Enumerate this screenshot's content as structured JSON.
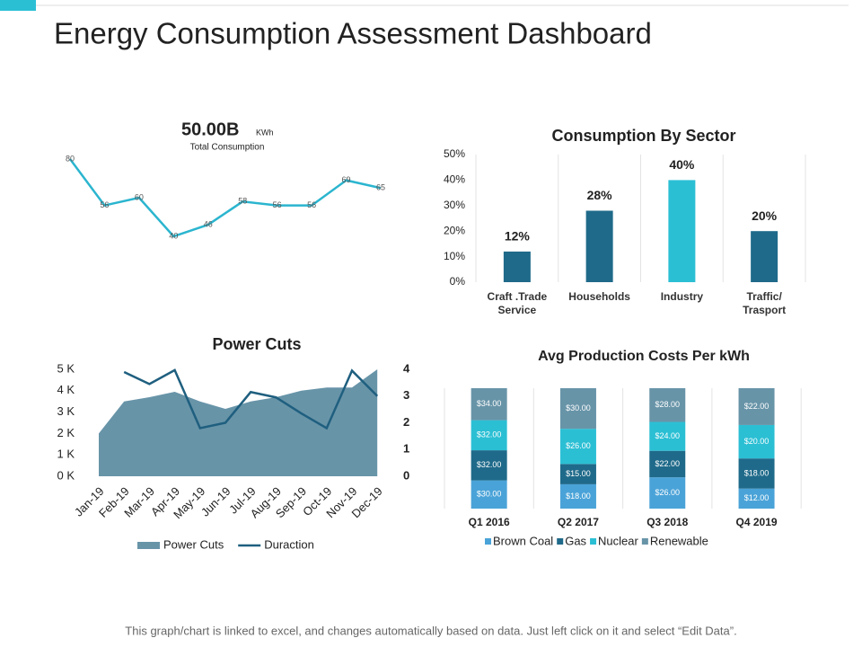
{
  "title": "Energy Consumption Assessment Dashboard",
  "footer": "This graph/chart is linked to excel, and changes automatically based on data. Just left click on it and select “Edit Data”.",
  "chart_data": [
    {
      "type": "line",
      "headline": "50.00B",
      "unit": "KWh",
      "subtitle": "Total Consumption",
      "color": "#2bb5cf",
      "values": [
        80,
        56,
        60,
        40,
        46,
        58,
        56,
        56,
        69,
        65
      ]
    },
    {
      "type": "bar",
      "title": "Consumption By Sector",
      "categories": [
        "Craft .Trade Service",
        "Households",
        "Industry",
        "Traffic/ Trasport"
      ],
      "values": [
        12,
        28,
        40,
        20
      ],
      "value_labels": [
        "12%",
        "28%",
        "40%",
        "20%"
      ],
      "colors": [
        "#1f6a8a",
        "#1f6a8a",
        "#2bbfd4",
        "#1f6a8a"
      ],
      "ylim": [
        0,
        50
      ],
      "yticks": [
        {
          "value": 0,
          "label": "0%"
        },
        {
          "value": 10,
          "label": "10%"
        },
        {
          "value": 20,
          "label": "20%"
        },
        {
          "value": 30,
          "label": "30%"
        },
        {
          "value": 40,
          "label": "40%"
        },
        {
          "value": 50,
          "label": "50%"
        }
      ]
    },
    {
      "type": "area",
      "title": "Power Cuts",
      "categories": [
        "Jan-19",
        "Feb-19",
        "Mar-19",
        "Apr-19",
        "May-19",
        "Jun-19",
        "Jul-19",
        "Aug-19",
        "Sep-19",
        "Oct-19",
        "Nov-19",
        "Dec-19"
      ],
      "series": [
        {
          "name": "Power Cuts",
          "type": "area",
          "color": "#6894a8",
          "values": [
            2000,
            3500,
            3700,
            3950,
            3500,
            3150,
            3500,
            3700,
            4000,
            4150,
            4150,
            5000
          ]
        },
        {
          "name": "Duraction",
          "type": "line",
          "axis": "y2",
          "color": "#1f5f7f",
          "values": [
            null,
            3.9,
            3.45,
            3.97,
            1.8,
            2.0,
            3.15,
            2.95,
            2.35,
            1.8,
            3.95,
            3.0
          ]
        }
      ],
      "ylim": [
        0,
        5000
      ],
      "yticks": [
        {
          "value": 0,
          "label": "0 K"
        },
        {
          "value": 1000,
          "label": "1 K"
        },
        {
          "value": 2000,
          "label": "2 K"
        },
        {
          "value": 3000,
          "label": "3 K"
        },
        {
          "value": 4000,
          "label": "4 K"
        },
        {
          "value": 5000,
          "label": "5 K"
        }
      ],
      "y2lim": [
        0,
        4
      ],
      "y2ticks": [
        0,
        1,
        2,
        3,
        4
      ],
      "legend": "bottom"
    },
    {
      "type": "stacked_bar",
      "title": "Avg Production Costs Per kWh",
      "normalize": true,
      "legend": "bottom",
      "categories": [
        "Q1 2016",
        "Q2 2017",
        "Q3 2018",
        "Q4 2019"
      ],
      "series": [
        {
          "name": "Brown Coal",
          "color": "#4aa3d8",
          "values": [
            30,
            18,
            26,
            12
          ],
          "value_labels": [
            "$30.00",
            "$18.00",
            "$26.00",
            "$12.00"
          ]
        },
        {
          "name": "Gas",
          "color": "#1f6a8a",
          "values": [
            32,
            15,
            22,
            18
          ],
          "value_labels": [
            "$32.00",
            "$15.00",
            "$22.00",
            "$18.00"
          ]
        },
        {
          "name": "Nuclear",
          "color": "#2bbfd4",
          "values": [
            32,
            26,
            24,
            20
          ],
          "value_labels": [
            "$32.00",
            "$26.00",
            "$24.00",
            "$20.00"
          ]
        },
        {
          "name": "Renewable",
          "color": "#6894a8",
          "values": [
            34,
            30,
            28,
            22
          ],
          "value_labels": [
            "$34.00",
            "$30.00",
            "$28.00",
            "$22.00"
          ]
        }
      ]
    }
  ]
}
